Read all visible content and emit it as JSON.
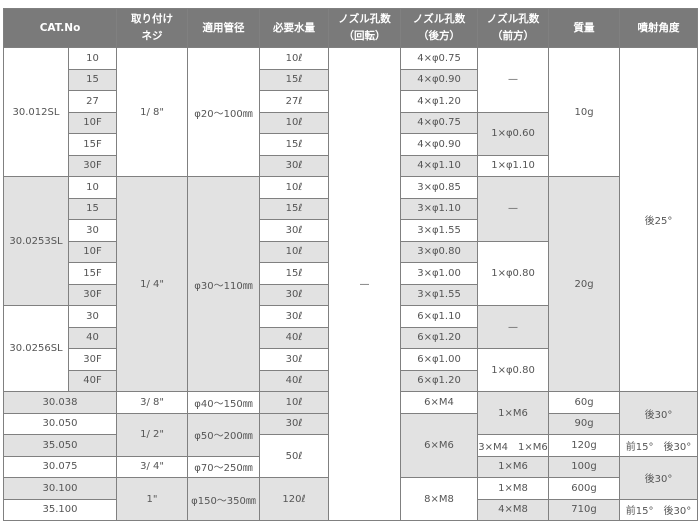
{
  "header": [
    {
      "lines": [
        "CAT.No"
      ],
      "cs": 2
    },
    {
      "lines": [
        "取り付け",
        "ネジ"
      ]
    },
    {
      "lines": [
        "適用管径"
      ]
    },
    {
      "lines": [
        "必要水量"
      ]
    },
    {
      "lines": [
        "ノズル孔数",
        "（回転）"
      ]
    },
    {
      "lines": [
        "ノズル孔数",
        "（後方）"
      ]
    },
    {
      "lines": [
        "ノズル孔数",
        "（前方）"
      ]
    },
    {
      "lines": [
        "質量"
      ]
    },
    {
      "lines": [
        "噴射角度"
      ]
    }
  ],
  "colors": {
    "header_bg": "#7a7a7a",
    "shaded_cell": "#e2e2e2"
  },
  "rows": [
    [
      {
        "t": "30.012SL",
        "rs": 6
      },
      {
        "t": "10"
      },
      {
        "t": "1/ 8\"",
        "rs": 6
      },
      {
        "t": "φ20～100㎜",
        "rs": 6
      },
      {
        "t": "10ℓ"
      },
      {
        "t": "—",
        "rs": 22
      },
      {
        "t": "4×φ0.75"
      },
      {
        "t": "—",
        "rs": 3
      },
      {
        "t": "10g",
        "rs": 6
      },
      {
        "t": "後25°",
        "rs": 16
      }
    ],
    [
      {
        "t": "15",
        "g": true
      },
      {
        "t": "15ℓ",
        "g": true
      },
      {
        "t": "4×φ0.90",
        "g": true
      }
    ],
    [
      {
        "t": "27"
      },
      {
        "t": "27ℓ"
      },
      {
        "t": "4×φ1.20"
      }
    ],
    [
      {
        "t": "10F",
        "g": true
      },
      {
        "t": "10ℓ",
        "g": true
      },
      {
        "t": "4×φ0.75",
        "g": true
      },
      {
        "t": "1×φ0.60",
        "rs": 2,
        "g": true
      }
    ],
    [
      {
        "t": "15F"
      },
      {
        "t": "15ℓ"
      },
      {
        "t": "4×φ0.90"
      }
    ],
    [
      {
        "t": "30F",
        "g": true
      },
      {
        "t": "30ℓ",
        "g": true
      },
      {
        "t": "4×φ1.10",
        "g": true
      },
      {
        "t": "1×φ1.10"
      }
    ],
    [
      {
        "t": "30.0253SL",
        "rs": 6,
        "g": true
      },
      {
        "t": "10"
      },
      {
        "t": "1/ 4\"",
        "rs": 10,
        "g": true
      },
      {
        "t": "φ30～110㎜",
        "rs": 10,
        "g": true
      },
      {
        "t": "10ℓ"
      },
      {
        "t": "3×φ0.85"
      },
      {
        "t": "—",
        "rs": 3,
        "g": true
      },
      {
        "t": "20g",
        "rs": 10,
        "g": true
      }
    ],
    [
      {
        "t": "15",
        "g": true
      },
      {
        "t": "15ℓ",
        "g": true
      },
      {
        "t": "3×φ1.10",
        "g": true
      }
    ],
    [
      {
        "t": "30"
      },
      {
        "t": "30ℓ"
      },
      {
        "t": "3×φ1.55"
      }
    ],
    [
      {
        "t": "10F",
        "g": true
      },
      {
        "t": "10ℓ",
        "g": true
      },
      {
        "t": "3×φ0.80",
        "g": true
      },
      {
        "t": "1×φ0.80",
        "rs": 3
      }
    ],
    [
      {
        "t": "15F"
      },
      {
        "t": "15ℓ"
      },
      {
        "t": "3×φ1.00"
      }
    ],
    [
      {
        "t": "30F",
        "g": true
      },
      {
        "t": "30ℓ",
        "g": true
      },
      {
        "t": "3×φ1.55",
        "g": true
      }
    ],
    [
      {
        "t": "30.0256SL",
        "rs": 4
      },
      {
        "t": "30"
      },
      {
        "t": "30ℓ"
      },
      {
        "t": "6×φ1.10"
      },
      {
        "t": "—",
        "rs": 2,
        "g": true
      }
    ],
    [
      {
        "t": "40",
        "g": true
      },
      {
        "t": "40ℓ",
        "g": true
      },
      {
        "t": "6×φ1.20",
        "g": true
      }
    ],
    [
      {
        "t": "30F"
      },
      {
        "t": "30ℓ"
      },
      {
        "t": "6×φ1.00"
      },
      {
        "t": "1×φ0.80",
        "rs": 2
      }
    ],
    [
      {
        "t": "40F",
        "g": true
      },
      {
        "t": "40ℓ",
        "g": true
      },
      {
        "t": "6×φ1.20",
        "g": true
      }
    ],
    [
      {
        "t": "30.038",
        "cs": 2,
        "g": true
      },
      {
        "t": "3/ 8\""
      },
      {
        "t": "φ40～150㎜"
      },
      {
        "t": "10ℓ",
        "g": true
      },
      {
        "t": "6×M4"
      },
      {
        "t": "1×M6",
        "rs": 2,
        "g": true
      },
      {
        "t": "60g"
      },
      {
        "t": "後30°",
        "rs": 2,
        "g": true
      }
    ],
    [
      {
        "t": "30.050",
        "cs": 2
      },
      {
        "t": "1/ 2\"",
        "rs": 2,
        "g": true
      },
      {
        "t": "φ50～200㎜",
        "rs": 2,
        "g": true
      },
      {
        "t": "30ℓ",
        "g": true
      },
      {
        "t": "6×M6",
        "rs": 3,
        "g": true
      },
      {
        "t": "90g",
        "g": true
      }
    ],
    [
      {
        "t": "35.050",
        "cs": 2,
        "g": true
      },
      {
        "t": "50ℓ",
        "rs": 2
      },
      {
        "t": "3×M4　1×M6"
      },
      {
        "t": "120g"
      },
      {
        "t": "前15°　後30°"
      }
    ],
    [
      {
        "t": "30.075",
        "cs": 2
      },
      {
        "t": "3/ 4\""
      },
      {
        "t": "φ70～250㎜"
      },
      {
        "t": "1×M6",
        "g": true
      },
      {
        "t": "100g",
        "g": true
      },
      {
        "t": "後30°",
        "rs": 2,
        "g": true
      }
    ],
    [
      {
        "t": "30.100",
        "cs": 2,
        "g": true
      },
      {
        "t": "1\"",
        "rs": 2,
        "g": true
      },
      {
        "t": "φ150～350㎜",
        "rs": 2,
        "g": true
      },
      {
        "t": "120ℓ",
        "rs": 2,
        "g": true
      },
      {
        "t": "8×M8",
        "rs": 2
      },
      {
        "t": "1×M8"
      },
      {
        "t": "600g"
      }
    ],
    [
      {
        "t": "35.100",
        "cs": 2
      },
      {
        "t": "4×M8",
        "g": true
      },
      {
        "t": "710g",
        "g": true
      },
      {
        "t": "前15°　後30°"
      }
    ]
  ]
}
